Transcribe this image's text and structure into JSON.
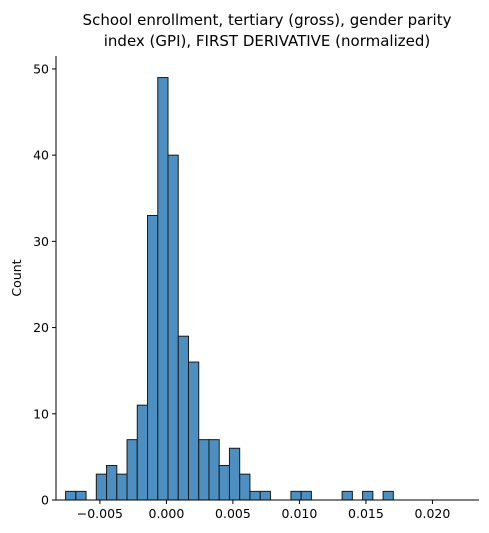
{
  "chart_data": {
    "type": "bar",
    "title_lines": [
      "School enrollment, tertiary (gross), gender parity",
      "index (GPI), FIRST DERIVATIVE (normalized)"
    ],
    "xlabel": "",
    "ylabel": "Count",
    "xlim": [
      -0.0083,
      0.0235
    ],
    "ylim": [
      0,
      51.5
    ],
    "x_ticks": [
      -0.005,
      0.0,
      0.005,
      0.01,
      0.015,
      0.02
    ],
    "x_tick_labels": [
      "−0.005",
      "0.000",
      "0.005",
      "0.010",
      "0.015",
      "0.020"
    ],
    "y_ticks": [
      0,
      10,
      20,
      30,
      40,
      50
    ],
    "y_tick_labels": [
      "0",
      "10",
      "20",
      "30",
      "40",
      "50"
    ],
    "bin_width": 0.00077,
    "bins_start": -0.00758,
    "counts": [
      1,
      1,
      0,
      3,
      4,
      3,
      7,
      11,
      33,
      49,
      40,
      19,
      16,
      7,
      7,
      4,
      6,
      3,
      1,
      1,
      0,
      0,
      1,
      1,
      0,
      0,
      0,
      1,
      0,
      1,
      0,
      1
    ],
    "bar_color": "#4c8fc0",
    "edge_color": "#1a1a1a",
    "grid": false
  }
}
